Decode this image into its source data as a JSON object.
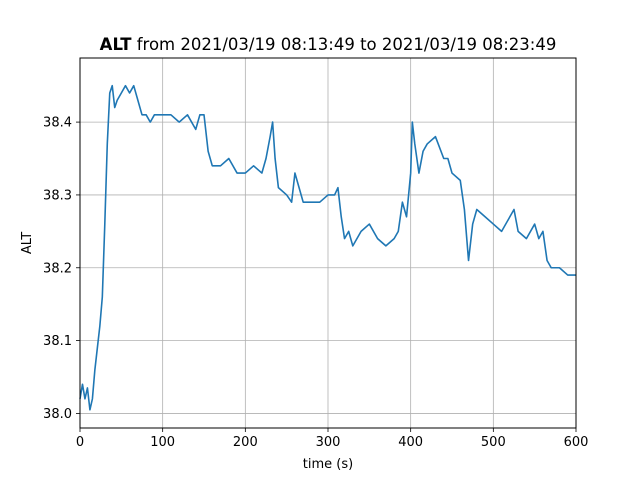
{
  "chart_data": {
    "type": "line",
    "title_bold": "ALT",
    "title_rest": " from 2021/03/19 08:13:49 to 2021/03/19 08:23:49",
    "xlabel": "time (s)",
    "ylabel": "ALT",
    "xlim": [
      0,
      600
    ],
    "ylim": [
      37.98,
      38.488
    ],
    "xticks": [
      0,
      100,
      200,
      300,
      400,
      500,
      600
    ],
    "xtick_labels": [
      "0",
      "100",
      "200",
      "300",
      "400",
      "500",
      "600"
    ],
    "yticks": [
      38.0,
      38.1,
      38.2,
      38.3,
      38.4
    ],
    "ytick_labels": [
      "38.0",
      "38.1",
      "38.2",
      "38.3",
      "38.4"
    ],
    "grid": true,
    "line_color": "#1f77b4",
    "series": [
      {
        "x": [
          0,
          3,
          6,
          9,
          12,
          15,
          18,
          21,
          24,
          27,
          30,
          33,
          36,
          39,
          42,
          45,
          50,
          55,
          60,
          65,
          70,
          75,
          80,
          85,
          90,
          95,
          100,
          110,
          120,
          130,
          140,
          145,
          150,
          155,
          160,
          170,
          180,
          190,
          200,
          210,
          220,
          225,
          230,
          233,
          236,
          240,
          250,
          256,
          260,
          265,
          270,
          280,
          290,
          300,
          308,
          312,
          316,
          320,
          325,
          330,
          340,
          350,
          360,
          370,
          380,
          385,
          390,
          395,
          400,
          402,
          405,
          410,
          415,
          420,
          430,
          440,
          445,
          450,
          460,
          465,
          470,
          472,
          475,
          480,
          490,
          500,
          510,
          520,
          525,
          530,
          540,
          550,
          555,
          560,
          565,
          570,
          580,
          590,
          600
        ],
        "y": [
          38.02,
          38.04,
          38.02,
          38.035,
          38.005,
          38.02,
          38.06,
          38.09,
          38.12,
          38.16,
          38.26,
          38.37,
          38.44,
          38.45,
          38.42,
          38.43,
          38.44,
          38.45,
          38.44,
          38.45,
          38.43,
          38.41,
          38.41,
          38.4,
          38.41,
          38.41,
          38.41,
          38.41,
          38.4,
          38.41,
          38.39,
          38.41,
          38.41,
          38.36,
          38.34,
          38.34,
          38.35,
          38.33,
          38.33,
          38.34,
          38.33,
          38.35,
          38.38,
          38.4,
          38.35,
          38.31,
          38.3,
          38.29,
          38.33,
          38.31,
          38.29,
          38.29,
          38.29,
          38.3,
          38.3,
          38.31,
          38.27,
          38.24,
          38.25,
          38.23,
          38.25,
          38.26,
          38.24,
          38.23,
          38.24,
          38.25,
          38.29,
          38.27,
          38.33,
          38.4,
          38.37,
          38.33,
          38.36,
          38.37,
          38.38,
          38.35,
          38.35,
          38.33,
          38.32,
          38.28,
          38.21,
          38.23,
          38.26,
          38.28,
          38.27,
          38.26,
          38.25,
          38.27,
          38.28,
          38.25,
          38.24,
          38.26,
          38.24,
          38.25,
          38.21,
          38.2,
          38.2,
          38.19,
          38.19
        ]
      }
    ]
  }
}
